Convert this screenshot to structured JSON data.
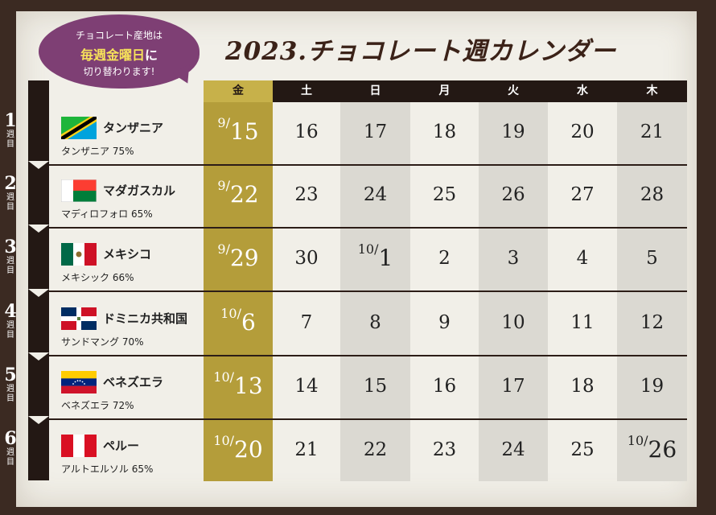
{
  "title": "2023.チョコレート週カレンダー",
  "bubble": {
    "line1": "チョコレート産地は",
    "line2_highlight": "毎週金曜日",
    "line2_rest": "に",
    "line3": "切り替わります!"
  },
  "week_label": "週目",
  "weekdays": [
    "金",
    "土",
    "日",
    "月",
    "火",
    "水",
    "木"
  ],
  "colors": {
    "friday_column": "#b49d3a",
    "header_friday": "#c7b14a",
    "bubble": "#7e3f74",
    "frame": "#3b2a22"
  },
  "weeks": [
    {
      "num": "1",
      "country": "タンザニア",
      "chocolate": "タンザニア 75%",
      "flag": "tanzania-flag-icon",
      "days": [
        "9/15",
        "16",
        "17",
        "18",
        "19",
        "20",
        "21"
      ]
    },
    {
      "num": "2",
      "country": "マダガスカル",
      "chocolate": "マディロフォロ 65%",
      "flag": "madagascar-flag-icon",
      "days": [
        "9/22",
        "23",
        "24",
        "25",
        "26",
        "27",
        "28"
      ]
    },
    {
      "num": "3",
      "country": "メキシコ",
      "chocolate": "メキシック 66%",
      "flag": "mexico-flag-icon",
      "days": [
        "9/29",
        "30",
        "10/1",
        "2",
        "3",
        "4",
        "5"
      ]
    },
    {
      "num": "4",
      "country": "ドミニカ共和国",
      "chocolate": "サンドマング 70%",
      "flag": "dominican-republic-flag-icon",
      "days": [
        "10/6",
        "7",
        "8",
        "9",
        "10",
        "11",
        "12"
      ]
    },
    {
      "num": "5",
      "country": "ベネズエラ",
      "chocolate": "ベネズエラ 72%",
      "flag": "venezuela-flag-icon",
      "days": [
        "10/13",
        "14",
        "15",
        "16",
        "17",
        "18",
        "19"
      ]
    },
    {
      "num": "6",
      "country": "ペルー",
      "chocolate": "アルトエルソル 65%",
      "flag": "peru-flag-icon",
      "days": [
        "10/20",
        "21",
        "22",
        "23",
        "24",
        "25",
        "10/26"
      ]
    }
  ]
}
